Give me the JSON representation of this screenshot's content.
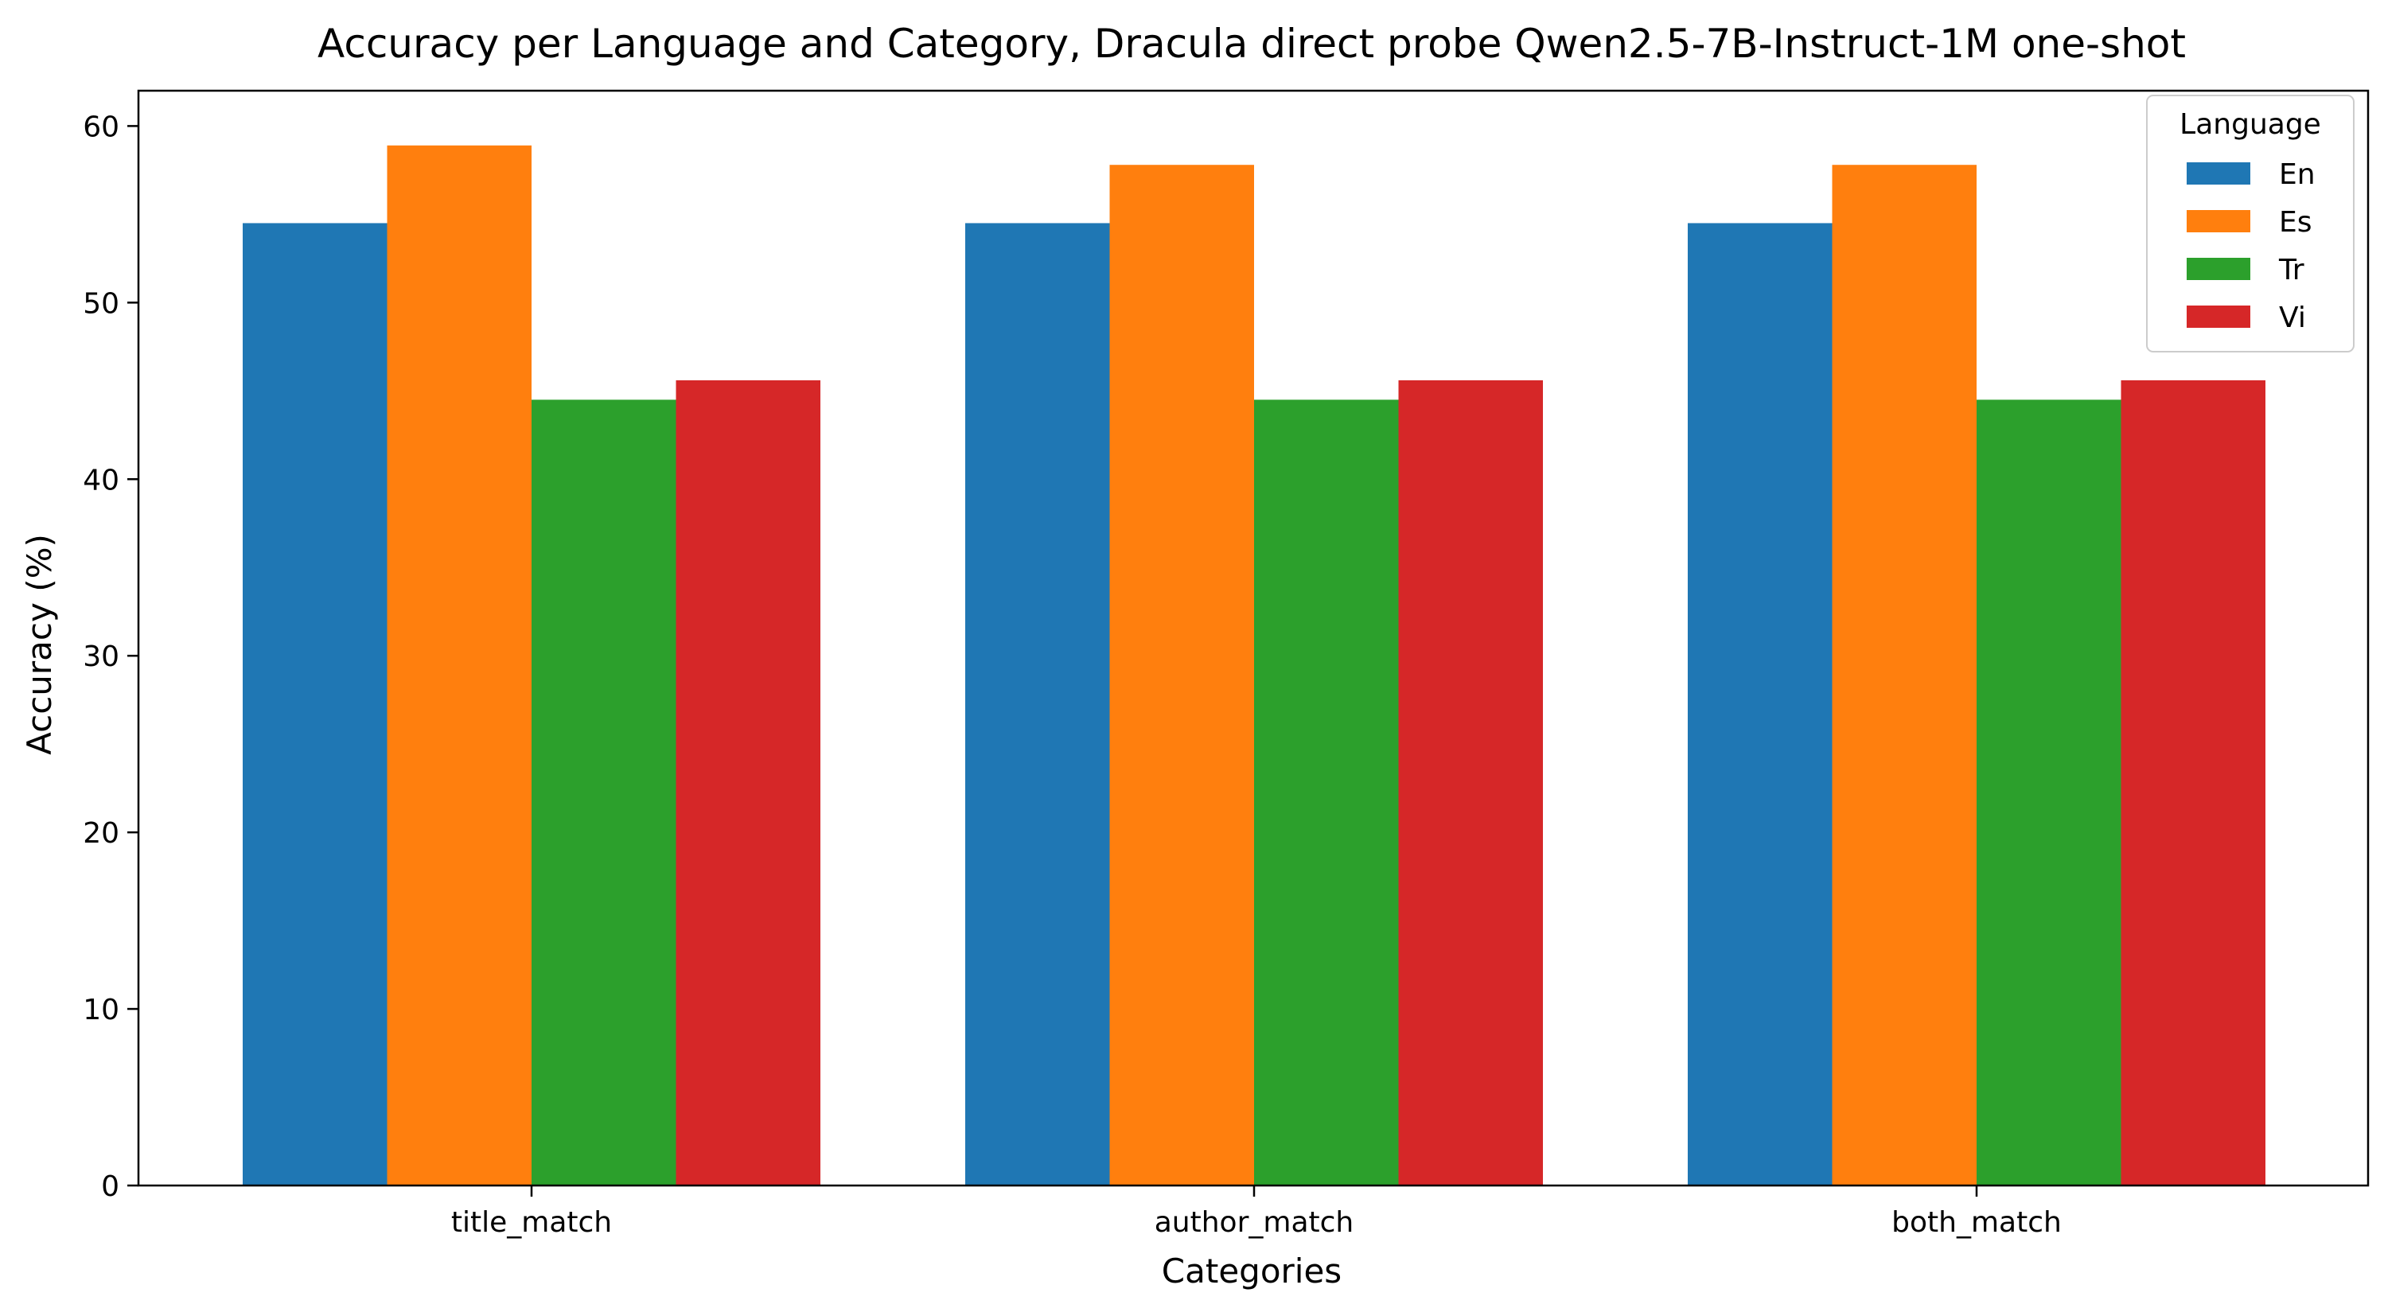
{
  "chart_data": {
    "type": "bar",
    "title": "Accuracy per Language and Category, Dracula direct probe Qwen2.5-7B-Instruct-1M one-shot",
    "xlabel": "Categories",
    "ylabel": "Accuracy (%)",
    "categories": [
      "title_match",
      "author_match",
      "both_match"
    ],
    "series": [
      {
        "name": "En",
        "color": "#1f77b4",
        "values": [
          54.5,
          54.5,
          54.5
        ]
      },
      {
        "name": "Es",
        "color": "#ff7f0e",
        "values": [
          58.9,
          57.8,
          57.8
        ]
      },
      {
        "name": "Tr",
        "color": "#2ca02c",
        "values": [
          44.5,
          44.5,
          44.5
        ]
      },
      {
        "name": "Vi",
        "color": "#d62728",
        "values": [
          45.6,
          45.6,
          45.6
        ]
      }
    ],
    "ylim": [
      0,
      62
    ],
    "yticks": [
      0,
      10,
      20,
      30,
      40,
      50,
      60
    ],
    "grid": false,
    "legend": {
      "title": "Language",
      "placement": "top-right"
    }
  }
}
